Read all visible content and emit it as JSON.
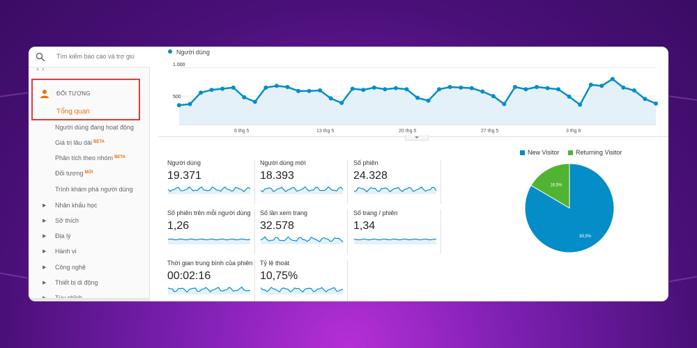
{
  "colors": {
    "accent": "#058dc7",
    "green": "#50b432",
    "orange": "#e8710a",
    "highlight": "#e53935"
  },
  "search": {
    "placeholder": "Tìm kiếm báo cáo và trợ giú"
  },
  "sidebar": {
    "section_title": "ĐỐI TƯỢNG",
    "overview": "Tổng quan",
    "items": [
      {
        "label": "Người dùng đang hoạt động",
        "badge": ""
      },
      {
        "label": "Giá trị lâu dài",
        "badge": "BETA"
      },
      {
        "label": "Phân tích theo nhóm",
        "badge": "BETA"
      },
      {
        "label": "Đối tượng",
        "badge": "MỚI"
      },
      {
        "label": "Trình khám phá người dùng",
        "badge": ""
      }
    ],
    "groups": [
      "Nhân khẩu học",
      "Sở thích",
      "Địa lý",
      "Hành vi",
      "Công nghệ",
      "Thiết bị di động",
      "Tùy chỉnh"
    ]
  },
  "chart_data": [
    {
      "type": "line",
      "series": [
        {
          "name": "Người dùng",
          "values": [
            340,
            360,
            560,
            610,
            630,
            650,
            480,
            400,
            650,
            680,
            660,
            590,
            590,
            600,
            460,
            380,
            630,
            610,
            650,
            620,
            640,
            620,
            470,
            420,
            620,
            660,
            650,
            640,
            580,
            500,
            360,
            660,
            620,
            660,
            640,
            620,
            490,
            350,
            700,
            680,
            800,
            650,
            600,
            450,
            370
          ]
        }
      ],
      "yticks": [
        "1.000",
        "500"
      ],
      "ylim": [
        0,
        1100
      ],
      "xticks": [
        "6 thg 5",
        "13 thg 5",
        "20 thg 5",
        "27 thg 5",
        "3 thg 6"
      ],
      "grid": true
    },
    {
      "type": "pie",
      "series": [
        {
          "values": [
            83.5,
            16.5
          ],
          "labels": [
            "83,5%",
            "16,5%"
          ]
        }
      ],
      "legend": [
        "New Visitor",
        "Returning Visitor"
      ],
      "legend_position": "top"
    }
  ],
  "metrics": [
    {
      "label": "Người dùng",
      "value": "19.371"
    },
    {
      "label": "Người dùng mới",
      "value": "18.393"
    },
    {
      "label": "Số phiên",
      "value": "24.328"
    },
    {
      "label": "Số phiên trên mỗi người dùng",
      "value": "1,26"
    },
    {
      "label": "Số lần xem trang",
      "value": "32.578"
    },
    {
      "label": "Số trang / phiên",
      "value": "1,34"
    },
    {
      "label": "Thời gian trung bình của phiên",
      "value": "00:02:16"
    },
    {
      "label": "Tỷ lệ thoát",
      "value": "10,75%"
    }
  ]
}
